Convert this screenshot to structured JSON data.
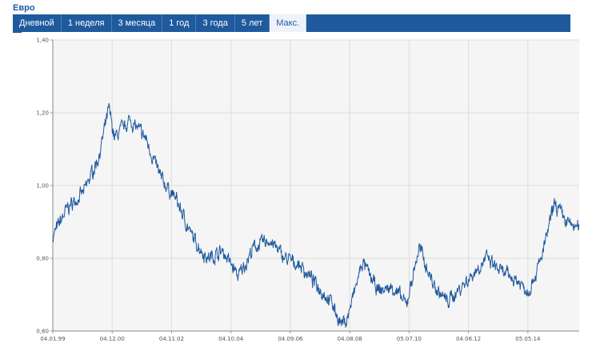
{
  "app_title": "Евро",
  "tabs": [
    {
      "label": "Дневной",
      "active": false
    },
    {
      "label": "1 неделя",
      "active": false
    },
    {
      "label": "3 месяца",
      "active": false
    },
    {
      "label": "1 год",
      "active": false
    },
    {
      "label": "3 года",
      "active": false
    },
    {
      "label": "5 лет",
      "active": false
    },
    {
      "label": "Макс.",
      "active": true
    }
  ],
  "colors": {
    "tabbar": "#1f5a9e",
    "line": "#1f5a9e",
    "plot_bg": "#f5f5f5",
    "grid": "#dddddd"
  },
  "chart_data": {
    "type": "line",
    "title": "",
    "xlabel": "",
    "ylabel": "",
    "x_ticks": [
      "04.01.99",
      "04.12.00",
      "04.11.02",
      "04.10.04",
      "04.09.06",
      "04.08.08",
      "05.07.10",
      "04.06.12",
      "05.05.14"
    ],
    "y_ticks": [
      "0,60",
      "0,80",
      "1,00",
      "1,20",
      "1,40"
    ],
    "ylim": [
      0.6,
      1.4
    ],
    "xlim": [
      "1999-01-04",
      "2015-12-31"
    ],
    "grid": true,
    "series": [
      {
        "x": [
          "1999-01-04",
          "1999-07-01",
          "2000-01-01",
          "2000-07-01",
          "2000-10-26",
          "2001-01-01",
          "2001-07-01",
          "2002-01-01",
          "2002-07-01",
          "2003-01-01",
          "2003-07-01",
          "2004-01-01",
          "2004-07-01",
          "2005-01-01",
          "2005-07-01",
          "2006-01-01",
          "2006-07-01",
          "2007-01-01",
          "2007-07-01",
          "2008-01-01",
          "2008-04-22",
          "2008-07-01",
          "2009-01-01",
          "2009-07-01",
          "2010-01-01",
          "2010-06-01",
          "2010-11-01",
          "2011-05-01",
          "2011-10-01",
          "2012-07-01",
          "2013-01-01",
          "2013-07-01",
          "2014-01-01",
          "2014-05-08",
          "2014-10-01",
          "2015-03-16",
          "2015-08-01",
          "2015-12-31"
        ],
        "values": [
          0.86,
          0.94,
          0.98,
          1.08,
          1.21,
          1.13,
          1.18,
          1.13,
          1.02,
          0.96,
          0.86,
          0.8,
          0.82,
          0.75,
          0.83,
          0.85,
          0.8,
          0.78,
          0.73,
          0.68,
          0.62,
          0.63,
          0.79,
          0.71,
          0.72,
          0.67,
          0.83,
          0.72,
          0.68,
          0.75,
          0.8,
          0.76,
          0.74,
          0.71,
          0.79,
          0.95,
          0.9,
          0.88
        ]
      }
    ]
  }
}
